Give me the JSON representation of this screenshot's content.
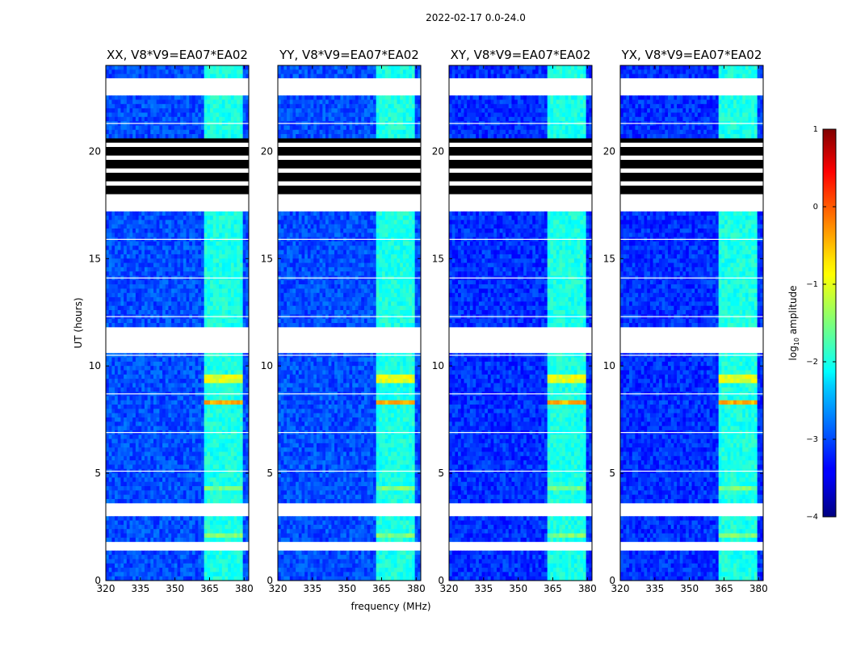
{
  "chart_data": {
    "type": "heatmap",
    "suptitle": "2022-02-17 0.0-24.0",
    "xlabel": "frequency (MHz)",
    "ylabel": "UT (hours)",
    "xlim": [
      320,
      382
    ],
    "ylim": [
      0,
      24
    ],
    "xticks": [
      320,
      335,
      350,
      365,
      380
    ],
    "xtick_labels": [
      "320",
      "335",
      "350",
      "365",
      "380"
    ],
    "yticks": [
      0,
      5,
      10,
      15,
      20
    ],
    "ytick_labels": [
      "0",
      "5",
      "10",
      "15",
      "20"
    ],
    "colorbar": {
      "label": "log",
      "label_sub": "10",
      "label_rest": " amplitude",
      "range": [
        -4,
        1
      ],
      "ticks": [
        1,
        0,
        -1,
        -2,
        -3,
        -4
      ],
      "tick_labels": [
        "1",
        "0",
        "−1",
        "−2",
        "−3",
        "−4"
      ],
      "colormap": "jet"
    },
    "panels": [
      {
        "title": "XX, V8*V9=EA07*EA02",
        "pol": "XX",
        "base_level": -3.0
      },
      {
        "title": "YY, V8*V9=EA07*EA02",
        "pol": "YY",
        "base_level": -3.0
      },
      {
        "title": "XY, V8*V9=EA07*EA02",
        "pol": "XY",
        "base_level": -3.15
      },
      {
        "title": "YX, V8*V9=EA07*EA02",
        "pol": "YX",
        "base_level": -3.15
      }
    ],
    "rfi_band_mhz": [
      362,
      379
    ],
    "bright_band_hours": [
      {
        "from": 8.2,
        "to": 8.5,
        "level": -0.5
      },
      {
        "from": 9.2,
        "to": 9.6,
        "level": -1.0
      },
      {
        "from": 4.2,
        "to": 4.4,
        "level": -1.5
      },
      {
        "from": 2.1,
        "to": 2.3,
        "level": -1.5
      }
    ],
    "flagged_hours": [
      {
        "from": 22.6,
        "to": 23.5
      },
      {
        "from": 10.6,
        "to": 11.8
      },
      {
        "from": 17.2,
        "to": 17.8
      },
      {
        "from": 1.5,
        "to": 1.8
      },
      {
        "from": 0.9,
        "to": 1.1
      },
      {
        "from": 3.0,
        "to": 3.6
      }
    ],
    "dark_hours": [
      {
        "from": 17.9,
        "to": 20.6
      }
    ]
  }
}
